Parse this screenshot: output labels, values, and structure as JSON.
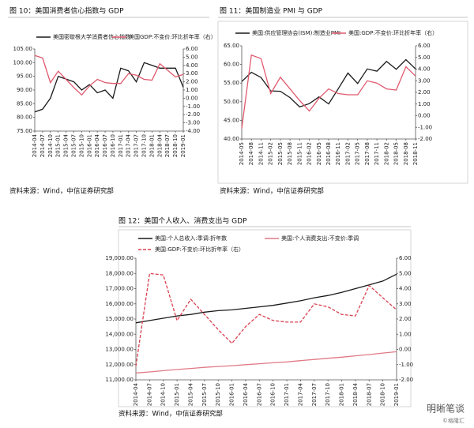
{
  "chart_data": [
    {
      "type": "line",
      "title": "图 10：美国消费者信心指数与 GDP",
      "source": "资料来源：Wind，中信证券研究部",
      "categories": [
        "2014-04",
        "2014-07",
        "2014-10",
        "2015-01",
        "2015-04",
        "2015-07",
        "2015-10",
        "2016-01",
        "2016-04",
        "2016-07",
        "2016-10",
        "2017-01",
        "2017-04",
        "2017-07",
        "2017-10",
        "2018-01",
        "2018-04",
        "2018-07",
        "2018-10",
        "2019-01"
      ],
      "series": [
        {
          "name": "美国密歇根大学消费者信心指数",
          "color": "#1a1a1a",
          "values": [
            82,
            83,
            87,
            95,
            94,
            93,
            90,
            92,
            89,
            90,
            87,
            98,
            97,
            93,
            100,
            99,
            98,
            98,
            98,
            91
          ]
        },
        {
          "name": "美国GDP:不变价:环比折年率（右）",
          "color": "#e05a6e",
          "axis": "y2",
          "values": [
            5.2,
            4.9,
            1.9,
            3.3,
            2.3,
            1.3,
            0.4,
            1.5,
            2.3,
            1.9,
            1.8,
            1.8,
            3.0,
            2.8,
            2.3,
            2.2,
            4.2,
            3.4,
            2.6,
            2.9
          ]
        }
      ],
      "ylim": [
        75,
        105
      ],
      "yticks": [
        {
          "value": 75,
          "label": "75.00"
        },
        {
          "value": 80,
          "label": "80.00"
        },
        {
          "value": 85,
          "label": "85.00"
        },
        {
          "value": 90,
          "label": "90.00"
        },
        {
          "value": 95,
          "label": "95.00"
        },
        {
          "value": 100,
          "label": "100.00"
        },
        {
          "value": 105,
          "label": "105.00"
        }
      ],
      "y2lim": [
        -4,
        6
      ],
      "y2ticks": [
        {
          "value": -4,
          "label": "-4.00"
        },
        {
          "value": -3,
          "label": "-3.00"
        },
        {
          "value": -2,
          "label": "-2.00"
        },
        {
          "value": -1,
          "label": "-1.00"
        },
        {
          "value": 0,
          "label": "0.00"
        },
        {
          "value": 1,
          "label": "1.00"
        },
        {
          "value": 2,
          "label": "2.00"
        },
        {
          "value": 3,
          "label": "3.00"
        },
        {
          "value": 4,
          "label": "4.00"
        },
        {
          "value": 5,
          "label": "5.00"
        },
        {
          "value": 6,
          "label": "6.00"
        }
      ],
      "grid": false
    },
    {
      "type": "line",
      "title": "图 11：美国制造业 PMI 与 GDP",
      "source": "资料来源：Wind，中信证券研究部",
      "categories": [
        "2014-05",
        "2014-08",
        "2014-11",
        "2015-02",
        "2015-05",
        "2015-08",
        "2015-11",
        "2016-02",
        "2016-05",
        "2016-08",
        "2016-11",
        "2017-02",
        "2017-05",
        "2017-08",
        "2017-11",
        "2018-02",
        "2018-05",
        "2018-08",
        "2018-11"
      ],
      "series": [
        {
          "name": "美国:供应管理协会(ISM):制造业PMI",
          "color": "#1a1a1a",
          "values": [
            55.4,
            57.9,
            56.5,
            52.9,
            52.8,
            51.1,
            48.6,
            49.5,
            51.3,
            49.4,
            53.5,
            57.7,
            54.9,
            58.8,
            58.2,
            60.8,
            58.7,
            61.3,
            58.8
          ]
        },
        {
          "name": "美国:GDP:不变价:环比折年率（右）",
          "color": "#e05a6e",
          "axis": "y2",
          "values": [
            -1.1,
            5.2,
            4.9,
            1.9,
            3.3,
            2.3,
            1.3,
            0.4,
            1.5,
            2.3,
            1.9,
            1.8,
            1.8,
            3.0,
            2.8,
            2.3,
            2.2,
            4.2,
            3.4
          ]
        }
      ],
      "ylim": [
        40,
        65
      ],
      "yticks": [
        {
          "value": 40,
          "label": "40.00"
        },
        {
          "value": 45,
          "label": "45.00"
        },
        {
          "value": 50,
          "label": "50.00"
        },
        {
          "value": 55,
          "label": "55.00"
        },
        {
          "value": 60,
          "label": "60.00"
        },
        {
          "value": 65,
          "label": "65.00"
        }
      ],
      "y2lim": [
        -2,
        6
      ],
      "y2ticks": [
        {
          "value": -2,
          "label": "-2.00"
        },
        {
          "value": -1,
          "label": "-1.00"
        },
        {
          "value": 0,
          "label": "0.00"
        },
        {
          "value": 1,
          "label": "1.00"
        },
        {
          "value": 2,
          "label": "2.00"
        },
        {
          "value": 3,
          "label": "3.00"
        },
        {
          "value": 4,
          "label": "4.00"
        },
        {
          "value": 5,
          "label": "5.00"
        },
        {
          "value": 6,
          "label": "6.00"
        }
      ],
      "grid": false
    },
    {
      "type": "line",
      "title": "图 12：美国个人收入、消费支出与 GDP",
      "source": "资料来源：Wind，中信证券研究部",
      "categories": [
        "2014-04",
        "2014-07",
        "2014-10",
        "2015-01",
        "2015-04",
        "2015-07",
        "2015-10",
        "2016-01",
        "2016-04",
        "2016-07",
        "2016-10",
        "2017-01",
        "2017-04",
        "2017-07",
        "2017-10",
        "2018-01",
        "2018-04",
        "2018-07",
        "2018-10",
        "2019-01"
      ],
      "series": [
        {
          "name": "美国:个人总收入:季调:折年数",
          "color": "#1a1a1a",
          "values": [
            14750,
            14900,
            15050,
            15200,
            15300,
            15450,
            15550,
            15600,
            15700,
            15800,
            15900,
            16050,
            16200,
            16400,
            16550,
            16750,
            17000,
            17250,
            17500,
            17950
          ]
        },
        {
          "name": "美国:个人消费支出:不变价:季调",
          "color": "#e07a86",
          "values": [
            11450,
            11520,
            11600,
            11680,
            11750,
            11820,
            11880,
            11930,
            12000,
            12060,
            12120,
            12180,
            12260,
            12340,
            12420,
            12490,
            12580,
            12660,
            12760,
            12850
          ]
        },
        {
          "name": "美国:GDP:不变价:环比折年率（右）",
          "color": "#d9404f",
          "axis": "y2",
          "line_style": "dashed",
          "values": [
            -1.1,
            5.0,
            4.9,
            1.9,
            3.3,
            2.3,
            1.3,
            0.4,
            1.5,
            2.3,
            1.9,
            1.8,
            1.8,
            3.0,
            2.8,
            2.3,
            2.2,
            4.2,
            3.4,
            2.6
          ]
        }
      ],
      "ylim": [
        11000,
        19000
      ],
      "yticks": [
        {
          "value": 11000,
          "label": "11,000.00"
        },
        {
          "value": 12000,
          "label": "12,000.00"
        },
        {
          "value": 13000,
          "label": "13,000.00"
        },
        {
          "value": 14000,
          "label": "14,000.00"
        },
        {
          "value": 15000,
          "label": "15,000.00"
        },
        {
          "value": 16000,
          "label": "16,000.00"
        },
        {
          "value": 17000,
          "label": "17,000.00"
        },
        {
          "value": 18000,
          "label": "18,000.00"
        },
        {
          "value": 19000,
          "label": "19,000.00"
        }
      ],
      "y2lim": [
        -2,
        6
      ],
      "y2ticks": [
        {
          "value": -2,
          "label": "-2.00"
        },
        {
          "value": -1,
          "label": "-1.00"
        },
        {
          "value": 0,
          "label": "0.00"
        },
        {
          "value": 1,
          "label": "1.00"
        },
        {
          "value": 2,
          "label": "2.00"
        },
        {
          "value": 3,
          "label": "3.00"
        },
        {
          "value": 4,
          "label": "4.00"
        },
        {
          "value": 5,
          "label": "5.00"
        },
        {
          "value": 6,
          "label": "6.00"
        }
      ],
      "grid": false
    }
  ],
  "watermark": {
    "brand": "明晰笔谈",
    "site": "©格隆汇"
  }
}
